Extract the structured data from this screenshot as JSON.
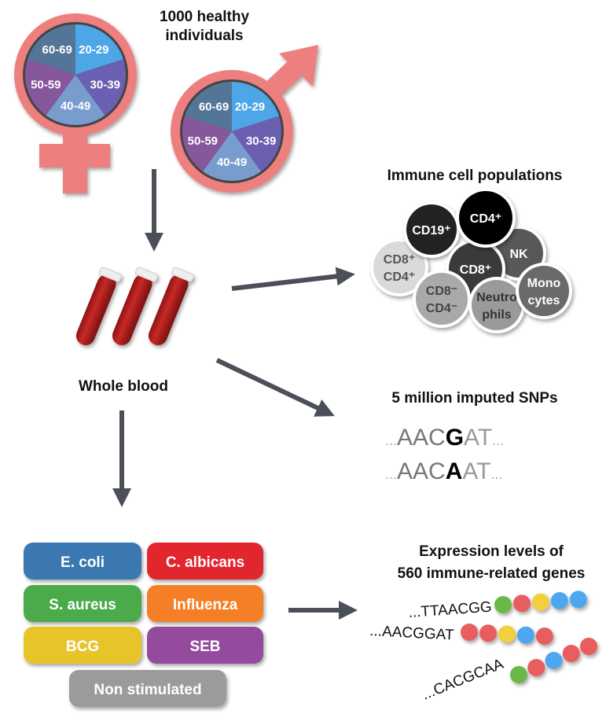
{
  "title": "1000 healthy individuals",
  "title_lines": [
    "1000 healthy",
    "individuals"
  ],
  "age_groups": [
    {
      "label": "20-29",
      "color": "#4fa6e6"
    },
    {
      "label": "30-39",
      "color": "#6b5fb2"
    },
    {
      "label": "40-49",
      "color": "#779ccd"
    },
    {
      "label": "50-59",
      "color": "#87579b"
    },
    {
      "label": "60-69",
      "color": "#537597"
    }
  ],
  "sex_symbol_color": "#ee7f7f",
  "arrow_color": "#4a4f58",
  "whole_blood": "Whole blood",
  "immune": {
    "title": "Immune cell populations",
    "cells": [
      {
        "lines": [
          "CD8⁺",
          "CD4⁺"
        ],
        "color": "#dadada",
        "text": "#555"
      },
      {
        "lines": [
          "CD19⁺"
        ],
        "color": "#222222",
        "text": "#fff"
      },
      {
        "lines": [
          "NK"
        ],
        "color": "#585858",
        "text": "#fff"
      },
      {
        "lines": [
          "CD8⁺"
        ],
        "color": "#3a3a3a",
        "text": "#fff"
      },
      {
        "lines": [
          "CD4⁺"
        ],
        "color": "#000000",
        "text": "#fff"
      },
      {
        "lines": [
          "CD8⁻",
          "CD4⁻"
        ],
        "color": "#a9a9a9",
        "text": "#444"
      },
      {
        "lines": [
          "Neutro",
          "phils"
        ],
        "color": "#9a9a9a",
        "text": "#333"
      },
      {
        "lines": [
          "Mono",
          "cytes"
        ],
        "color": "#6a6a6a",
        "text": "#fff"
      }
    ]
  },
  "snps": {
    "title": "5 million imputed SNPs",
    "seq1": {
      "pre": "AAC",
      "allele": "G",
      "post": "AT"
    },
    "seq2": {
      "pre": "AAC",
      "allele": "A",
      "post": "AT"
    },
    "ellipsis": "..."
  },
  "stimuli": [
    {
      "label": "E. coli",
      "color": "#3b78b1"
    },
    {
      "label": "C. albicans",
      "color": "#e1282e"
    },
    {
      "label": "S. aureus",
      "color": "#4bab4b"
    },
    {
      "label": "Influenza",
      "color": "#f57f26"
    },
    {
      "label": "BCG",
      "color": "#e7c52b"
    },
    {
      "label": "SEB",
      "color": "#944b9d"
    },
    {
      "label": "Non stimulated",
      "color": "#9b9b9b"
    }
  ],
  "expression": {
    "title_lines": [
      "Expression levels of",
      "560 immune-related genes"
    ],
    "rows": [
      {
        "seq": "...TTAACGG",
        "beads": [
          "#6ab947",
          "#e85d5d",
          "#f2cf3c",
          "#4fa6f0",
          "#4fa6f0"
        ]
      },
      {
        "seq": "...AACGGAT",
        "beads": [
          "#e85d5d",
          "#e85d5d",
          "#f2cf3c",
          "#4fa6f0",
          "#e85d5d"
        ]
      },
      {
        "seq": "...CACGCAA",
        "beads": [
          "#6ab947",
          "#e85d5d",
          "#4fa6f0",
          "#e85d5d",
          "#e85d5d"
        ]
      }
    ]
  }
}
